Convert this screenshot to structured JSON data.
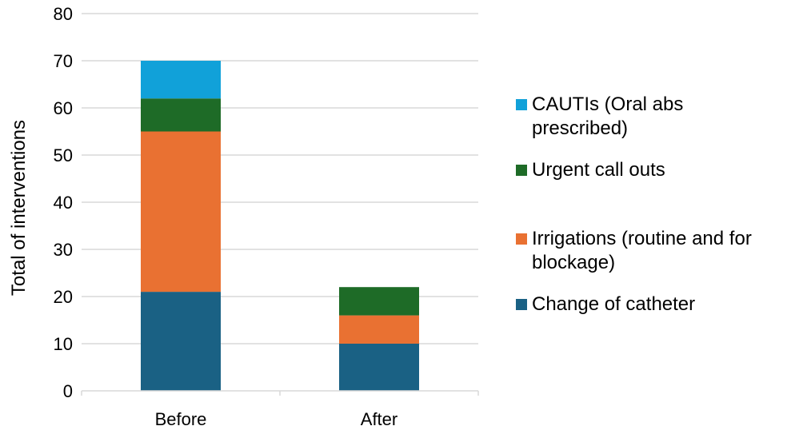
{
  "chart_data": {
    "type": "bar",
    "stacked": true,
    "categories": [
      "Before",
      "After"
    ],
    "series": [
      {
        "name": "Change of catheter",
        "values": [
          21,
          10
        ],
        "color": "#1a6184"
      },
      {
        "name": "Irrigations (routine and for blockage)",
        "values": [
          34,
          6
        ],
        "color": "#e97132"
      },
      {
        "name": "Urgent call outs",
        "values": [
          7,
          6
        ],
        "color": "#1e6b27"
      },
      {
        "name": "CAUTIs (Oral abs prescribed)",
        "values": [
          8,
          0
        ],
        "color": "#11a1d9"
      }
    ],
    "title": "",
    "xlabel": "",
    "ylabel": "Total of interventions",
    "ylim": [
      0,
      80
    ],
    "yticks": [
      0,
      10,
      20,
      30,
      40,
      50,
      60,
      70,
      80
    ],
    "grid": true,
    "legend_position": "right"
  }
}
